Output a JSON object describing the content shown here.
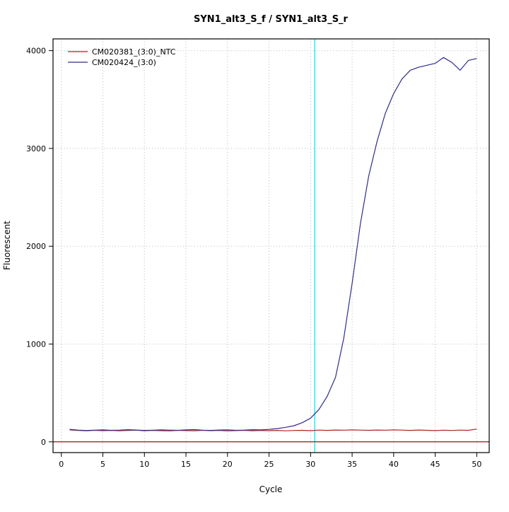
{
  "chart_data": {
    "type": "line",
    "title": "SYN1_alt3_S_f / SYN1_alt3_S_r",
    "xlabel": "Cycle",
    "ylabel": "Fluorescent",
    "xlim": [
      -1,
      51.5
    ],
    "ylim": [
      -110,
      4120
    ],
    "xticks": [
      0,
      5,
      10,
      15,
      20,
      25,
      30,
      35,
      40,
      45,
      50
    ],
    "yticks": [
      0,
      1000,
      2000,
      3000,
      4000
    ],
    "grid": "dotted",
    "grid_color": "#bdbdbd",
    "border_color": "#000000",
    "threshold_line": {
      "y": 0,
      "color": "#8b1a1a"
    },
    "ct_line": {
      "x": 30.5,
      "color": "#00eeee"
    },
    "legend_position": "top-left",
    "x": [
      1,
      2,
      3,
      4,
      5,
      6,
      7,
      8,
      9,
      10,
      11,
      12,
      13,
      14,
      15,
      16,
      17,
      18,
      19,
      20,
      21,
      22,
      23,
      24,
      25,
      26,
      27,
      28,
      29,
      30,
      31,
      32,
      33,
      34,
      35,
      36,
      37,
      38,
      39,
      40,
      41,
      42,
      43,
      44,
      45,
      46,
      47,
      48,
      49,
      50
    ],
    "series": [
      {
        "name": "CM020381_(3:0)_NTC",
        "color": "#b22222",
        "values": [
          122,
          116,
          113,
          118,
          114,
          117,
          113,
          116,
          119,
          113,
          116,
          114,
          112,
          117,
          115,
          113,
          118,
          114,
          116,
          112,
          115,
          118,
          113,
          116,
          114,
          117,
          113,
          116,
          118,
          114,
          120,
          117,
          121,
          119,
          122,
          120,
          118,
          121,
          119,
          122,
          120,
          117,
          121,
          118,
          115,
          119,
          116,
          120,
          118,
          131
        ]
      },
      {
        "name": "CM020424_(3:0)",
        "color": "#2e2e8f",
        "values": [
          128,
          120,
          116,
          119,
          122,
          118,
          120,
          124,
          121,
          117,
          119,
          123,
          120,
          118,
          122,
          125,
          119,
          117,
          121,
          123,
          118,
          120,
          124,
          122,
          127,
          136,
          148,
          165,
          196,
          242,
          330,
          465,
          660,
          1060,
          1620,
          2230,
          2720,
          3070,
          3360,
          3560,
          3710,
          3800,
          3830,
          3850,
          3870,
          3930,
          3880,
          3800,
          3900,
          3920
        ]
      }
    ]
  }
}
